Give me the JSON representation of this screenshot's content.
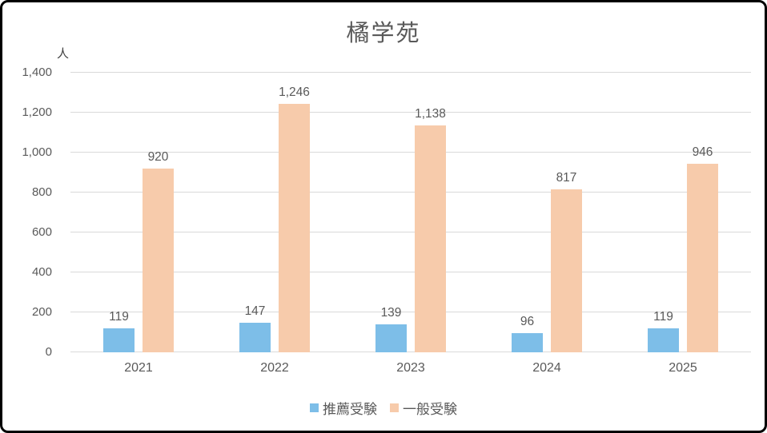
{
  "window": {
    "background": "#ffffff",
    "border_color": "#000000"
  },
  "chart_data": {
    "type": "bar",
    "title": "橘学苑",
    "y_unit_label": "人",
    "categories": [
      "2021",
      "2022",
      "2023",
      "2024",
      "2025"
    ],
    "series": [
      {
        "key": "recommended-exam",
        "name": "推薦受験",
        "color": "#7DBEE8",
        "values": [
          119,
          147,
          139,
          96,
          119
        ],
        "value_labels": [
          "119",
          "147",
          "139",
          "96",
          "119"
        ]
      },
      {
        "key": "general-exam",
        "name": "一般受験",
        "color": "#F7CBAB",
        "values": [
          920,
          1246,
          1138,
          817,
          946
        ],
        "value_labels": [
          "920",
          "1,246",
          "1,138",
          "817",
          "946"
        ]
      }
    ],
    "y_axis": {
      "min": 0,
      "max": 1400,
      "step": 200,
      "tick_labels": [
        "0",
        "200",
        "400",
        "600",
        "800",
        "1,000",
        "1,200",
        "1,400"
      ]
    },
    "grid": true,
    "legend_position": "bottom",
    "style_colors": {
      "grid_line": "#D9D9D9",
      "axis_text": "#595959",
      "title_text": "#595959",
      "data_label_text": "#595959"
    }
  }
}
